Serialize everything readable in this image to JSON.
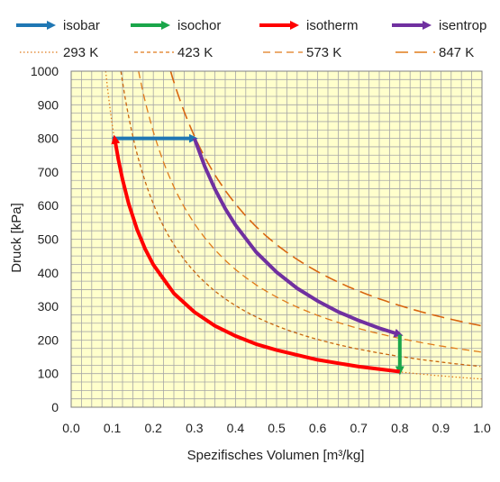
{
  "chart_data": {
    "type": "line",
    "xlabel": "Spezifisches Volumen [m³/kg]",
    "ylabel": "Druck  [kPa]",
    "xlim": [
      0,
      1
    ],
    "ylim": [
      0,
      1000
    ],
    "x_ticks": [
      "0.0",
      "0.1",
      "0.2",
      "0.3",
      "0.4",
      "0.5",
      "0.6",
      "0.7",
      "0.8",
      "0.9",
      "1.0"
    ],
    "y_ticks": [
      "0",
      "100",
      "200",
      "300",
      "400",
      "500",
      "600",
      "700",
      "800",
      "900",
      "1000"
    ],
    "grid": true,
    "background_color": "#ffffcc",
    "grid_color": "#a6a6a6",
    "legend_position": "top",
    "legend_rows": [
      [
        {
          "label": "isobar",
          "kind": "arrow",
          "color": "#1f77b4"
        },
        {
          "label": "isochor",
          "kind": "arrow",
          "color": "#1aa64a"
        },
        {
          "label": "isotherm",
          "kind": "arrow",
          "color": "#ff0000"
        },
        {
          "label": "isentrop",
          "kind": "arrow",
          "color": "#7030a0"
        }
      ],
      [
        {
          "label": "293 K",
          "kind": "dotted",
          "color": "#e07b1a"
        },
        {
          "label": "423 K",
          "kind": "short-dash",
          "color": "#e07b1a"
        },
        {
          "label": "573 K",
          "kind": "medium-dash",
          "color": "#e07b1a"
        },
        {
          "label": "847 K",
          "kind": "long-dash",
          "color": "#e07b1a"
        }
      ]
    ],
    "isotherm_lines": [
      {
        "name": "293 K",
        "pv_constant": 84,
        "x_start": 0.084,
        "dash": "dotted",
        "color": "#e07b1a"
      },
      {
        "name": "423 K",
        "pv_constant": 121,
        "x_start": 0.121,
        "dash": "short-dash",
        "color": "#c8650f"
      },
      {
        "name": "573 K",
        "pv_constant": 164,
        "x_start": 0.164,
        "dash": "medium-dash",
        "color": "#e07b1a"
      },
      {
        "name": "847 K",
        "pv_constant": 242,
        "x_start": 0.242,
        "dash": "long-dash",
        "color": "#d86510"
      }
    ],
    "process_series": [
      {
        "name": "isobar",
        "color": "#1f77b4",
        "x": [
          0.1,
          0.3
        ],
        "y": [
          800,
          800
        ]
      },
      {
        "name": "isentrop",
        "color": "#7030a0",
        "x": [
          0.3,
          0.325,
          0.35,
          0.375,
          0.4,
          0.45,
          0.5,
          0.55,
          0.6,
          0.65,
          0.7,
          0.75,
          0.8
        ],
        "y": [
          800,
          717,
          649,
          591,
          542,
          462,
          402,
          354,
          316,
          284,
          258,
          235,
          216
        ]
      },
      {
        "name": "isochor",
        "color": "#1aa64a",
        "x": [
          0.8,
          0.8
        ],
        "y": [
          216,
          106
        ]
      },
      {
        "name": "isotherm",
        "color": "#ff0000",
        "x": [
          0.8,
          0.7,
          0.6,
          0.5,
          0.45,
          0.4,
          0.35,
          0.3,
          0.25,
          0.2,
          0.18,
          0.16,
          0.14,
          0.125,
          0.115,
          0.106
        ],
        "y": [
          106,
          121,
          141,
          170,
          188,
          212,
          242,
          283,
          339,
          424,
          471,
          530,
          606,
          678,
          737,
          800
        ]
      }
    ]
  }
}
